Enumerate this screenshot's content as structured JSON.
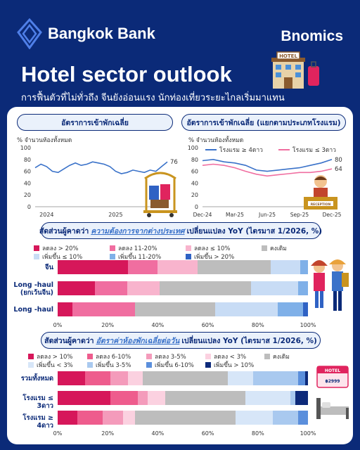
{
  "brand": {
    "name": "Bangkok Bank",
    "sub_brand": "Bnomics"
  },
  "title": "Hotel sector outlook",
  "subtitle": "การฟื้นตัวที่ไม่ทั่วถึง จีนยังอ่อนแรง นักท่องเที่ยวระยะไกลเริ่มมาแทน",
  "colors": {
    "navy": "#0b2a78",
    "light_blue": "#3a72c9",
    "pink": "#f06ea0"
  },
  "icons": [
    "hotel-building-icon",
    "suitcase-icon",
    "luggage-cart-icon",
    "receptionist-icon",
    "tourists-icon",
    "hotel-price-sign-icon",
    "bed-icon"
  ],
  "chart_data": [
    {
      "type": "line",
      "title": "อัตราการเข้าพักเฉลี่ย",
      "ylabel": "% จำนวนห้องทั้งหมด",
      "ylim": [
        0,
        100
      ],
      "yticks": [
        0,
        20,
        40,
        60,
        80,
        100
      ],
      "xticks": [
        "2024",
        "2025"
      ],
      "grid": false,
      "series": [
        {
          "values": [
            66,
            72,
            68,
            60,
            58,
            64,
            70,
            74,
            70,
            72,
            76,
            74,
            72,
            68,
            60,
            56,
            58,
            62,
            60,
            58,
            62,
            60,
            68,
            76
          ]
        }
      ],
      "end_label": "76"
    },
    {
      "type": "line",
      "title": "อัตราการเข้าพักเฉลี่ย (แยกตามประเภทโรงแรม)",
      "ylabel": "% จำนวนห้องทั้งหมด",
      "ylim": [
        0,
        100
      ],
      "yticks": [
        0,
        20,
        40,
        60,
        80,
        100
      ],
      "xticks": [
        "Dec-24",
        "Mar-25",
        "Jun-25",
        "Sep-25",
        "Dec-25"
      ],
      "grid": false,
      "series": [
        {
          "name": "โรงแรม ≥ 4ดาว",
          "color": "#3a72c9",
          "values": [
            78,
            80,
            76,
            74,
            70,
            62,
            60,
            62,
            64,
            66,
            70,
            74,
            80
          ],
          "end_label": "80"
        },
        {
          "name": "โรงแรม ≤ 3ดาว",
          "color": "#f06ea0",
          "values": [
            70,
            72,
            70,
            66,
            60,
            55,
            52,
            54,
            56,
            58,
            58,
            60,
            64
          ],
          "end_label": "64"
        }
      ]
    },
    {
      "type": "bar",
      "stacked": true,
      "orientation": "horizontal",
      "title_prefix": "สัดส่วนผู้คาดว่า",
      "title_highlight": "ความต้องการจากต่างประเทศ",
      "title_suffix": "เปลี่ยนแปลง YoY (ไตรมาส 1/2026, %)",
      "legend": [
        {
          "name": "ลดลง > 20%",
          "color": "#d6175a"
        },
        {
          "name": "ลดลง 11-20%",
          "color": "#f06ea0"
        },
        {
          "name": "ลดลง ≤ 10%",
          "color": "#f8b4cd"
        },
        {
          "name": "คงเดิม",
          "color": "#bdbdbd"
        },
        {
          "name": "เพิ่มขึ้น ≤ 10%",
          "color": "#c8dcf5"
        },
        {
          "name": "เพิ่มขึ้น 11-20%",
          "color": "#7fb0e8"
        },
        {
          "name": "เพิ่มขึ้น > 20%",
          "color": "#2f62c4"
        }
      ],
      "categories": [
        "จีน",
        "Long -haul (ยกเว้นจีน)",
        "Long -haul"
      ],
      "values": [
        [
          28,
          12,
          16,
          29,
          12,
          3,
          0
        ],
        [
          15,
          13,
          13,
          37,
          19,
          4,
          0
        ],
        [
          6,
          25,
          0,
          32,
          25,
          10,
          2
        ]
      ],
      "xlim": [
        0,
        100
      ],
      "xticks": [
        "0%",
        "20%",
        "40%",
        "60%",
        "80%",
        "100%"
      ]
    },
    {
      "type": "bar",
      "stacked": true,
      "orientation": "horizontal",
      "title_prefix": "สัดส่วนผู้คาดว่า",
      "title_highlight": "อัตราค่าห้องพักเฉลี่ยต่อวัน",
      "title_suffix": "เปลี่ยนแปลง YoY (ไตรมาส 1/2026, %)",
      "legend": [
        {
          "name": "ลดลง > 10%",
          "color": "#d6175a"
        },
        {
          "name": "ลดลง 6-10%",
          "color": "#ee5c8d"
        },
        {
          "name": "ลดลง 3-5%",
          "color": "#f49bbb"
        },
        {
          "name": "ลดลง < 3%",
          "color": "#fbd1e0"
        },
        {
          "name": "คงเดิม",
          "color": "#bdbdbd"
        },
        {
          "name": "เพิ่มขึ้น < 3%",
          "color": "#d7e6f8"
        },
        {
          "name": "เพิ่มขึ้น 3-5%",
          "color": "#a9c9ef"
        },
        {
          "name": "เพิ่มขึ้น 6-10%",
          "color": "#5b8fdc"
        },
        {
          "name": "เพิ่มขึ้น > 10%",
          "color": "#0d2a7a"
        }
      ],
      "categories": [
        "รวมทั้งหมด",
        "โรงแรม ≤ 3ดาว",
        "โรงแรม ≥ 4ดาว"
      ],
      "values": [
        [
          11,
          10,
          7,
          6,
          34,
          10,
          18,
          3,
          1
        ],
        [
          21,
          11,
          4,
          7,
          32,
          18,
          2,
          0,
          5
        ],
        [
          8,
          10,
          8,
          5,
          40,
          15,
          10,
          4,
          0
        ]
      ],
      "xlim": [
        0,
        100
      ],
      "xticks": [
        "0%",
        "20%",
        "40%",
        "60%",
        "80%",
        "100%"
      ]
    }
  ]
}
